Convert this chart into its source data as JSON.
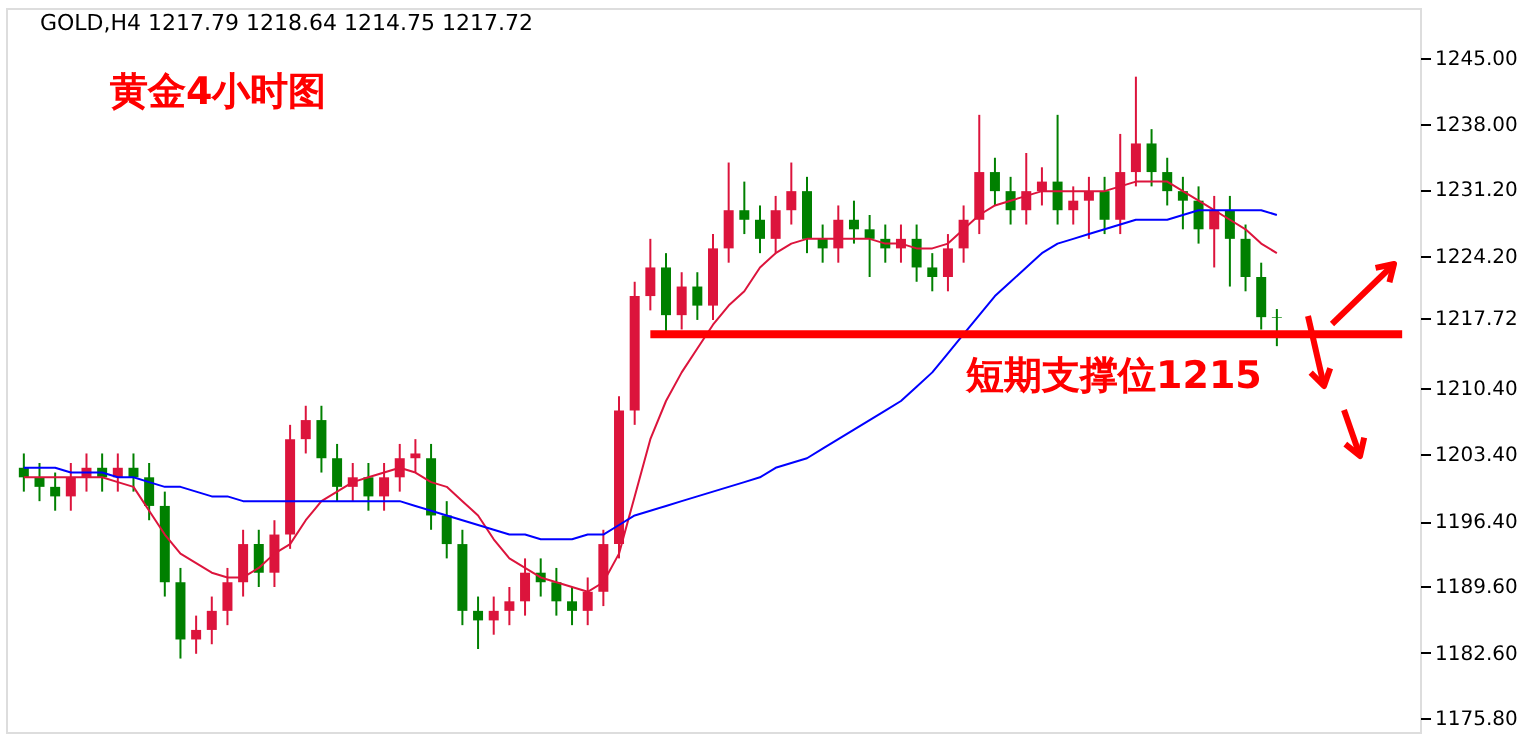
{
  "chart_data": {
    "type": "candlestick",
    "title": "黄金4小时图",
    "annotations": [
      "GOLD,H4  1217.79 1218.64 1214.75 1217.72",
      "短期支撑位1215"
    ],
    "categories": [
      null,
      null,
      null,
      null,
      null,
      null,
      null,
      null,
      null,
      null,
      null,
      null,
      null,
      null,
      null,
      null,
      null,
      null,
      null,
      null,
      null,
      null,
      null,
      null,
      null,
      null,
      null,
      null,
      null,
      null,
      null,
      null,
      null,
      null,
      null,
      null,
      null,
      null,
      null,
      null,
      null,
      null,
      null,
      null,
      null,
      null,
      null,
      null,
      null,
      null,
      null,
      null,
      null,
      null,
      null,
      null,
      null,
      null,
      null,
      null,
      null,
      null,
      null,
      null,
      null,
      null,
      null,
      null,
      null,
      null,
      null,
      null,
      null,
      null,
      null,
      null,
      null,
      null,
      null,
      null,
      null,
      null,
      null,
      null,
      null,
      null,
      null,
      null,
      null
    ],
    "ohlc": [
      [
        1202,
        1203.5,
        1199.5,
        1201
      ],
      [
        1201,
        1202.5,
        1198.5,
        1200
      ],
      [
        1200,
        1201.5,
        1197.5,
        1199
      ],
      [
        1199,
        1202.5,
        1197.5,
        1201
      ],
      [
        1201,
        1203.5,
        1199.5,
        1202
      ],
      [
        1202,
        1203.5,
        1199.5,
        1201
      ],
      [
        1201,
        1203.5,
        1199.5,
        1202
      ],
      [
        1202,
        1203.5,
        1199.5,
        1201
      ],
      [
        1201,
        1202.5,
        1196.5,
        1198
      ],
      [
        1198,
        1199.5,
        1188.5,
        1190
      ],
      [
        1190,
        1191.5,
        1182,
        1184
      ],
      [
        1184,
        1186.5,
        1182.5,
        1185
      ],
      [
        1185,
        1188.5,
        1183.5,
        1187
      ],
      [
        1187,
        1191.5,
        1185.5,
        1190
      ],
      [
        1190,
        1195.5,
        1188.5,
        1194
      ],
      [
        1194,
        1195.5,
        1189.5,
        1191
      ],
      [
        1191,
        1196.5,
        1189.5,
        1195
      ],
      [
        1195,
        1206.5,
        1193.5,
        1205
      ],
      [
        1205,
        1208.5,
        1203.5,
        1207
      ],
      [
        1207,
        1208.5,
        1201.5,
        1203
      ],
      [
        1203,
        1204.5,
        1198.5,
        1200
      ],
      [
        1200,
        1202.5,
        1198.5,
        1201
      ],
      [
        1201,
        1202.5,
        1197.5,
        1199
      ],
      [
        1199,
        1202.5,
        1197.5,
        1201
      ],
      [
        1201,
        1204.5,
        1199.5,
        1203
      ],
      [
        1203,
        1205,
        1201.5,
        1203.5
      ],
      [
        1203,
        1204.5,
        1195.5,
        1197
      ],
      [
        1197,
        1198.5,
        1192.5,
        1194
      ],
      [
        1194,
        1195.5,
        1185.5,
        1187
      ],
      [
        1187,
        1188.5,
        1183,
        1186
      ],
      [
        1186,
        1188.5,
        1184.5,
        1187
      ],
      [
        1187,
        1189.5,
        1185.5,
        1188
      ],
      [
        1188,
        1192.5,
        1186.5,
        1191
      ],
      [
        1191,
        1192.5,
        1188.5,
        1190
      ],
      [
        1190,
        1191.5,
        1186.5,
        1188
      ],
      [
        1188,
        1189.5,
        1185.5,
        1187
      ],
      [
        1187,
        1190.5,
        1185.5,
        1189
      ],
      [
        1189,
        1195.5,
        1187.5,
        1194
      ],
      [
        1194,
        1209.5,
        1192.5,
        1208
      ],
      [
        1208,
        1221.5,
        1206.5,
        1220
      ],
      [
        1220,
        1226,
        1218.5,
        1223
      ],
      [
        1223,
        1224.5,
        1216,
        1218
      ],
      [
        1218,
        1222.5,
        1216.5,
        1221
      ],
      [
        1221,
        1222.5,
        1217.5,
        1219
      ],
      [
        1219,
        1226.5,
        1217.5,
        1225
      ],
      [
        1225,
        1234,
        1223.5,
        1229
      ],
      [
        1229,
        1232,
        1226.5,
        1228
      ],
      [
        1228,
        1229.5,
        1224.5,
        1226
      ],
      [
        1226,
        1230.5,
        1224.5,
        1229
      ],
      [
        1229,
        1234,
        1227.5,
        1231
      ],
      [
        1231,
        1232.5,
        1224.5,
        1226
      ],
      [
        1226,
        1227.5,
        1223.5,
        1225
      ],
      [
        1225,
        1229.5,
        1223.5,
        1228
      ],
      [
        1228,
        1230,
        1225.5,
        1227
      ],
      [
        1227,
        1228.5,
        1222,
        1226
      ],
      [
        1226,
        1227.5,
        1223.5,
        1225
      ],
      [
        1225,
        1227.5,
        1223.5,
        1226
      ],
      [
        1226,
        1227.5,
        1221.5,
        1223
      ],
      [
        1223,
        1224.5,
        1220.5,
        1222
      ],
      [
        1222,
        1226.5,
        1220.5,
        1225
      ],
      [
        1225,
        1229.5,
        1223.5,
        1228
      ],
      [
        1228,
        1239,
        1226.5,
        1233
      ],
      [
        1233,
        1234.5,
        1229.5,
        1231
      ],
      [
        1231,
        1232.5,
        1227.5,
        1229
      ],
      [
        1229,
        1235,
        1227.5,
        1231
      ],
      [
        1231,
        1233.5,
        1229.5,
        1232
      ],
      [
        1232,
        1239,
        1227.5,
        1229
      ],
      [
        1229,
        1231.5,
        1227.5,
        1230
      ],
      [
        1230,
        1232.5,
        1226,
        1231
      ],
      [
        1231,
        1232.5,
        1226.5,
        1228
      ],
      [
        1228,
        1237,
        1226.5,
        1233
      ],
      [
        1233,
        1243,
        1231.5,
        1236
      ],
      [
        1236,
        1237.5,
        1231.5,
        1233
      ],
      [
        1233,
        1234.5,
        1229.5,
        1231
      ],
      [
        1231,
        1232.5,
        1227,
        1230
      ],
      [
        1230,
        1231.5,
        1225.5,
        1227
      ],
      [
        1227,
        1230.5,
        1223,
        1229
      ],
      [
        1229,
        1230.5,
        1221,
        1226
      ],
      [
        1226,
        1227.5,
        1220.5,
        1222
      ],
      [
        1222,
        1223.5,
        1216.5,
        1217.79
      ],
      [
        1217.79,
        1218.64,
        1214.75,
        1217.72
      ],
      null,
      null,
      null,
      null,
      null,
      null,
      null,
      null
    ],
    "colors": [
      "#008000",
      "#008000",
      "#008000",
      "#dc143c",
      "#dc143c",
      "#008000",
      "#dc143c",
      "#008000",
      "#008000",
      "#008000",
      "#008000",
      "#dc143c",
      "#dc143c",
      "#dc143c",
      "#dc143c",
      "#008000",
      "#dc143c",
      "#dc143c",
      "#dc143c",
      "#008000",
      "#008000",
      "#dc143c",
      "#008000",
      "#dc143c",
      "#dc143c",
      "#dc143c",
      "#008000",
      "#008000",
      "#008000",
      "#008000",
      "#dc143c",
      "#dc143c",
      "#dc143c",
      "#008000",
      "#008000",
      "#008000",
      "#dc143c",
      "#dc143c",
      "#dc143c",
      "#dc143c",
      "#dc143c",
      "#008000",
      "#dc143c",
      "#008000",
      "#dc143c",
      "#dc143c",
      "#008000",
      "#008000",
      "#dc143c",
      "#dc143c",
      "#008000",
      "#008000",
      "#dc143c",
      "#008000",
      "#008000",
      "#008000",
      "#dc143c",
      "#008000",
      "#008000",
      "#dc143c",
      "#dc143c",
      "#dc143c",
      "#008000",
      "#008000",
      "#dc143c",
      "#dc143c",
      "#008000",
      "#dc143c",
      "#dc143c",
      "#008000",
      "#dc143c",
      "#dc143c",
      "#008000",
      "#008000",
      "#008000",
      "#008000",
      "#dc143c",
      "#008000",
      "#008000",
      "#008000",
      "#008000",
      null,
      null,
      null,
      null,
      null,
      null,
      null,
      null
    ],
    "series": [
      {
        "type": "line",
        "color": "#dc143c",
        "values": [
          1201,
          1201,
          1201,
          1201,
          1201,
          1201,
          1200.5,
          1200,
          1197.5,
          1195,
          1193,
          1192,
          1191,
          1190.5,
          1190.5,
          1191.5,
          1193,
          1194,
          1196.5,
          1198.5,
          1199.5,
          1200.5,
          1201,
          1201.5,
          1202,
          1201.5,
          1200.5,
          1200,
          1198.5,
          1197,
          1194.5,
          1192.5,
          1191.5,
          1190.5,
          1190,
          1189.5,
          1189,
          1190,
          1193,
          1199,
          1205,
          1209,
          1212,
          1214.5,
          1217,
          1219,
          1220.5,
          1223,
          1224.5,
          1225.5,
          1226,
          1226,
          1226,
          1226,
          1226,
          1225.5,
          1225.5,
          1225,
          1225,
          1225.5,
          1227,
          1228.5,
          1229.5,
          1230,
          1230.5,
          1231,
          1231,
          1231,
          1231,
          1231,
          1231.5,
          1232,
          1232,
          1232,
          1231,
          1230,
          1229,
          1228,
          1227,
          1225.5,
          1224.5,
          null,
          null,
          null,
          null,
          null,
          null,
          null,
          null
        ]
      },
      {
        "type": "line",
        "color": "#0000ff",
        "values": [
          1202,
          1202,
          1202,
          1201.5,
          1201.5,
          1201.5,
          1201,
          1201,
          1200.5,
          1200,
          1200,
          1199.5,
          1199,
          1199,
          1198.5,
          1198.5,
          1198.5,
          1198.5,
          1198.5,
          1198.5,
          1198.5,
          1198.5,
          1198.5,
          1198.5,
          1198.5,
          1198,
          1197.5,
          1197,
          1196.5,
          1196,
          1195.5,
          1195,
          1195,
          1194.5,
          1194.5,
          1194.5,
          1195,
          1195,
          1196,
          1197,
          1197.5,
          1198,
          1198.5,
          1199,
          1199.5,
          1200,
          1200.5,
          1201,
          1202,
          1202.5,
          1203,
          1204,
          1205,
          1206,
          1207,
          1208,
          1209,
          1210.5,
          1212,
          1214,
          1216,
          1218,
          1220,
          1221.5,
          1223,
          1224.5,
          1225.5,
          1226,
          1226.5,
          1227,
          1227.5,
          1228,
          1228,
          1228,
          1228.5,
          1229,
          1229,
          1229,
          1229,
          1229,
          1228.5,
          null,
          null,
          null,
          null,
          null,
          null,
          null,
          null
        ]
      },
      {
        "type": "line",
        "color": "#ff0000",
        "values": [
          null,
          null,
          null,
          null,
          null,
          null,
          null,
          null,
          null,
          null,
          null,
          null,
          null,
          null,
          null,
          null,
          null,
          null,
          null,
          null,
          null,
          null,
          null,
          null,
          null,
          null,
          null,
          null,
          null,
          null,
          null,
          null,
          null,
          null,
          null,
          null,
          null,
          null,
          null,
          null,
          1216,
          1216,
          1216,
          1216,
          1216,
          1216,
          1216,
          1216,
          1216,
          1216,
          1216,
          1216,
          1216,
          1216,
          1216,
          1216,
          1216,
          1216,
          1216,
          1216,
          1216,
          1216,
          1216,
          1216,
          1216,
          1216,
          1216,
          1216,
          1216,
          1216,
          1216,
          1216,
          1216,
          1216,
          1216,
          1216,
          1216,
          1216,
          1216,
          1216,
          1216,
          1216,
          1216,
          1216,
          1216,
          1216,
          1216,
          1216,
          1216
        ]
      }
    ],
    "ylim": [
      1174.3,
      1250.2
    ],
    "yticks": [
      {
        "value": 1245,
        "label": "1245.00"
      },
      {
        "value": 1238,
        "label": "1238.00"
      },
      {
        "value": 1231.2,
        "label": "1231.20"
      },
      {
        "value": 1224.2,
        "label": "1224.20"
      },
      1217.72,
      {
        "value": 1210.4,
        "label": "1210.40"
      },
      {
        "value": 1203.4,
        "label": "1203.40"
      },
      {
        "value": 1196.4,
        "label": "1196.40"
      },
      {
        "value": 1189.6,
        "label": "1189.60"
      },
      {
        "value": 1182.6,
        "label": "1182.60"
      },
      {
        "value": 1175.8,
        "label": "1175.80"
      }
    ],
    "grid": false,
    "tick_labels": "y"
  }
}
